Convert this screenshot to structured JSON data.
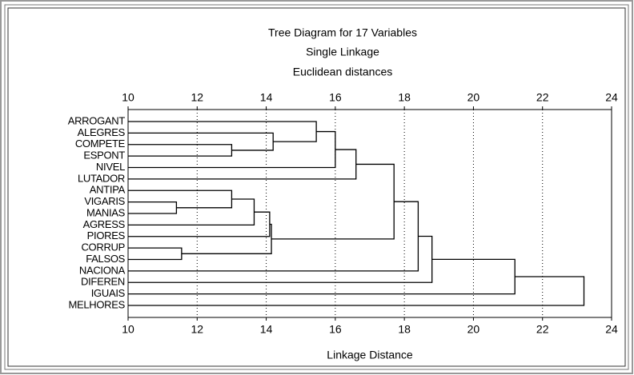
{
  "chart_data": {
    "type": "dendrogram",
    "title": "Tree Diagram for 17 Variables",
    "subtitle": "Single Linkage",
    "subtitle2": "Euclidean distances",
    "xlabel": "Linkage Distance",
    "xlim": [
      10,
      24
    ],
    "xticks": [
      10,
      12,
      14,
      16,
      18,
      20,
      22,
      24
    ],
    "grid": true,
    "color": "#000000",
    "leaves": [
      "ARROGANT",
      "ALEGRES",
      "COMPETE",
      "ESPONT",
      "NIVEL",
      "LUTADOR",
      "ANTIPA",
      "VIGARIS",
      "MANIAS",
      "AGRESS",
      "PIORES",
      "CORRUP",
      "FALSOS",
      "NACIONA",
      "DIFEREN",
      "IGUAIS",
      "MELHORES"
    ],
    "merges": [
      {
        "a": 2,
        "b": 3,
        "height": 13.0
      },
      {
        "a": 1,
        "b": 17,
        "height": 14.2
      },
      {
        "a": 0,
        "b": 18,
        "height": 15.45
      },
      {
        "a": 4,
        "b": 19,
        "height": 16.0
      },
      {
        "a": 5,
        "b": 20,
        "height": 16.6
      },
      {
        "a": 7,
        "b": 8,
        "height": 11.4
      },
      {
        "a": 6,
        "b": 22,
        "height": 13.0
      },
      {
        "a": 9,
        "b": 23,
        "height": 13.65
      },
      {
        "a": 11,
        "b": 12,
        "height": 11.55
      },
      {
        "a": 10,
        "b": 24,
        "height": 14.1
      },
      {
        "a": 25,
        "b": 26,
        "height": 14.15
      },
      {
        "a": 21,
        "b": 27,
        "height": 17.7
      },
      {
        "a": 13,
        "b": 28,
        "height": 18.4
      },
      {
        "a": 14,
        "b": 29,
        "height": 18.8
      },
      {
        "a": 15,
        "b": 30,
        "height": 21.2
      },
      {
        "a": 16,
        "b": 31,
        "height": 23.2
      }
    ]
  }
}
